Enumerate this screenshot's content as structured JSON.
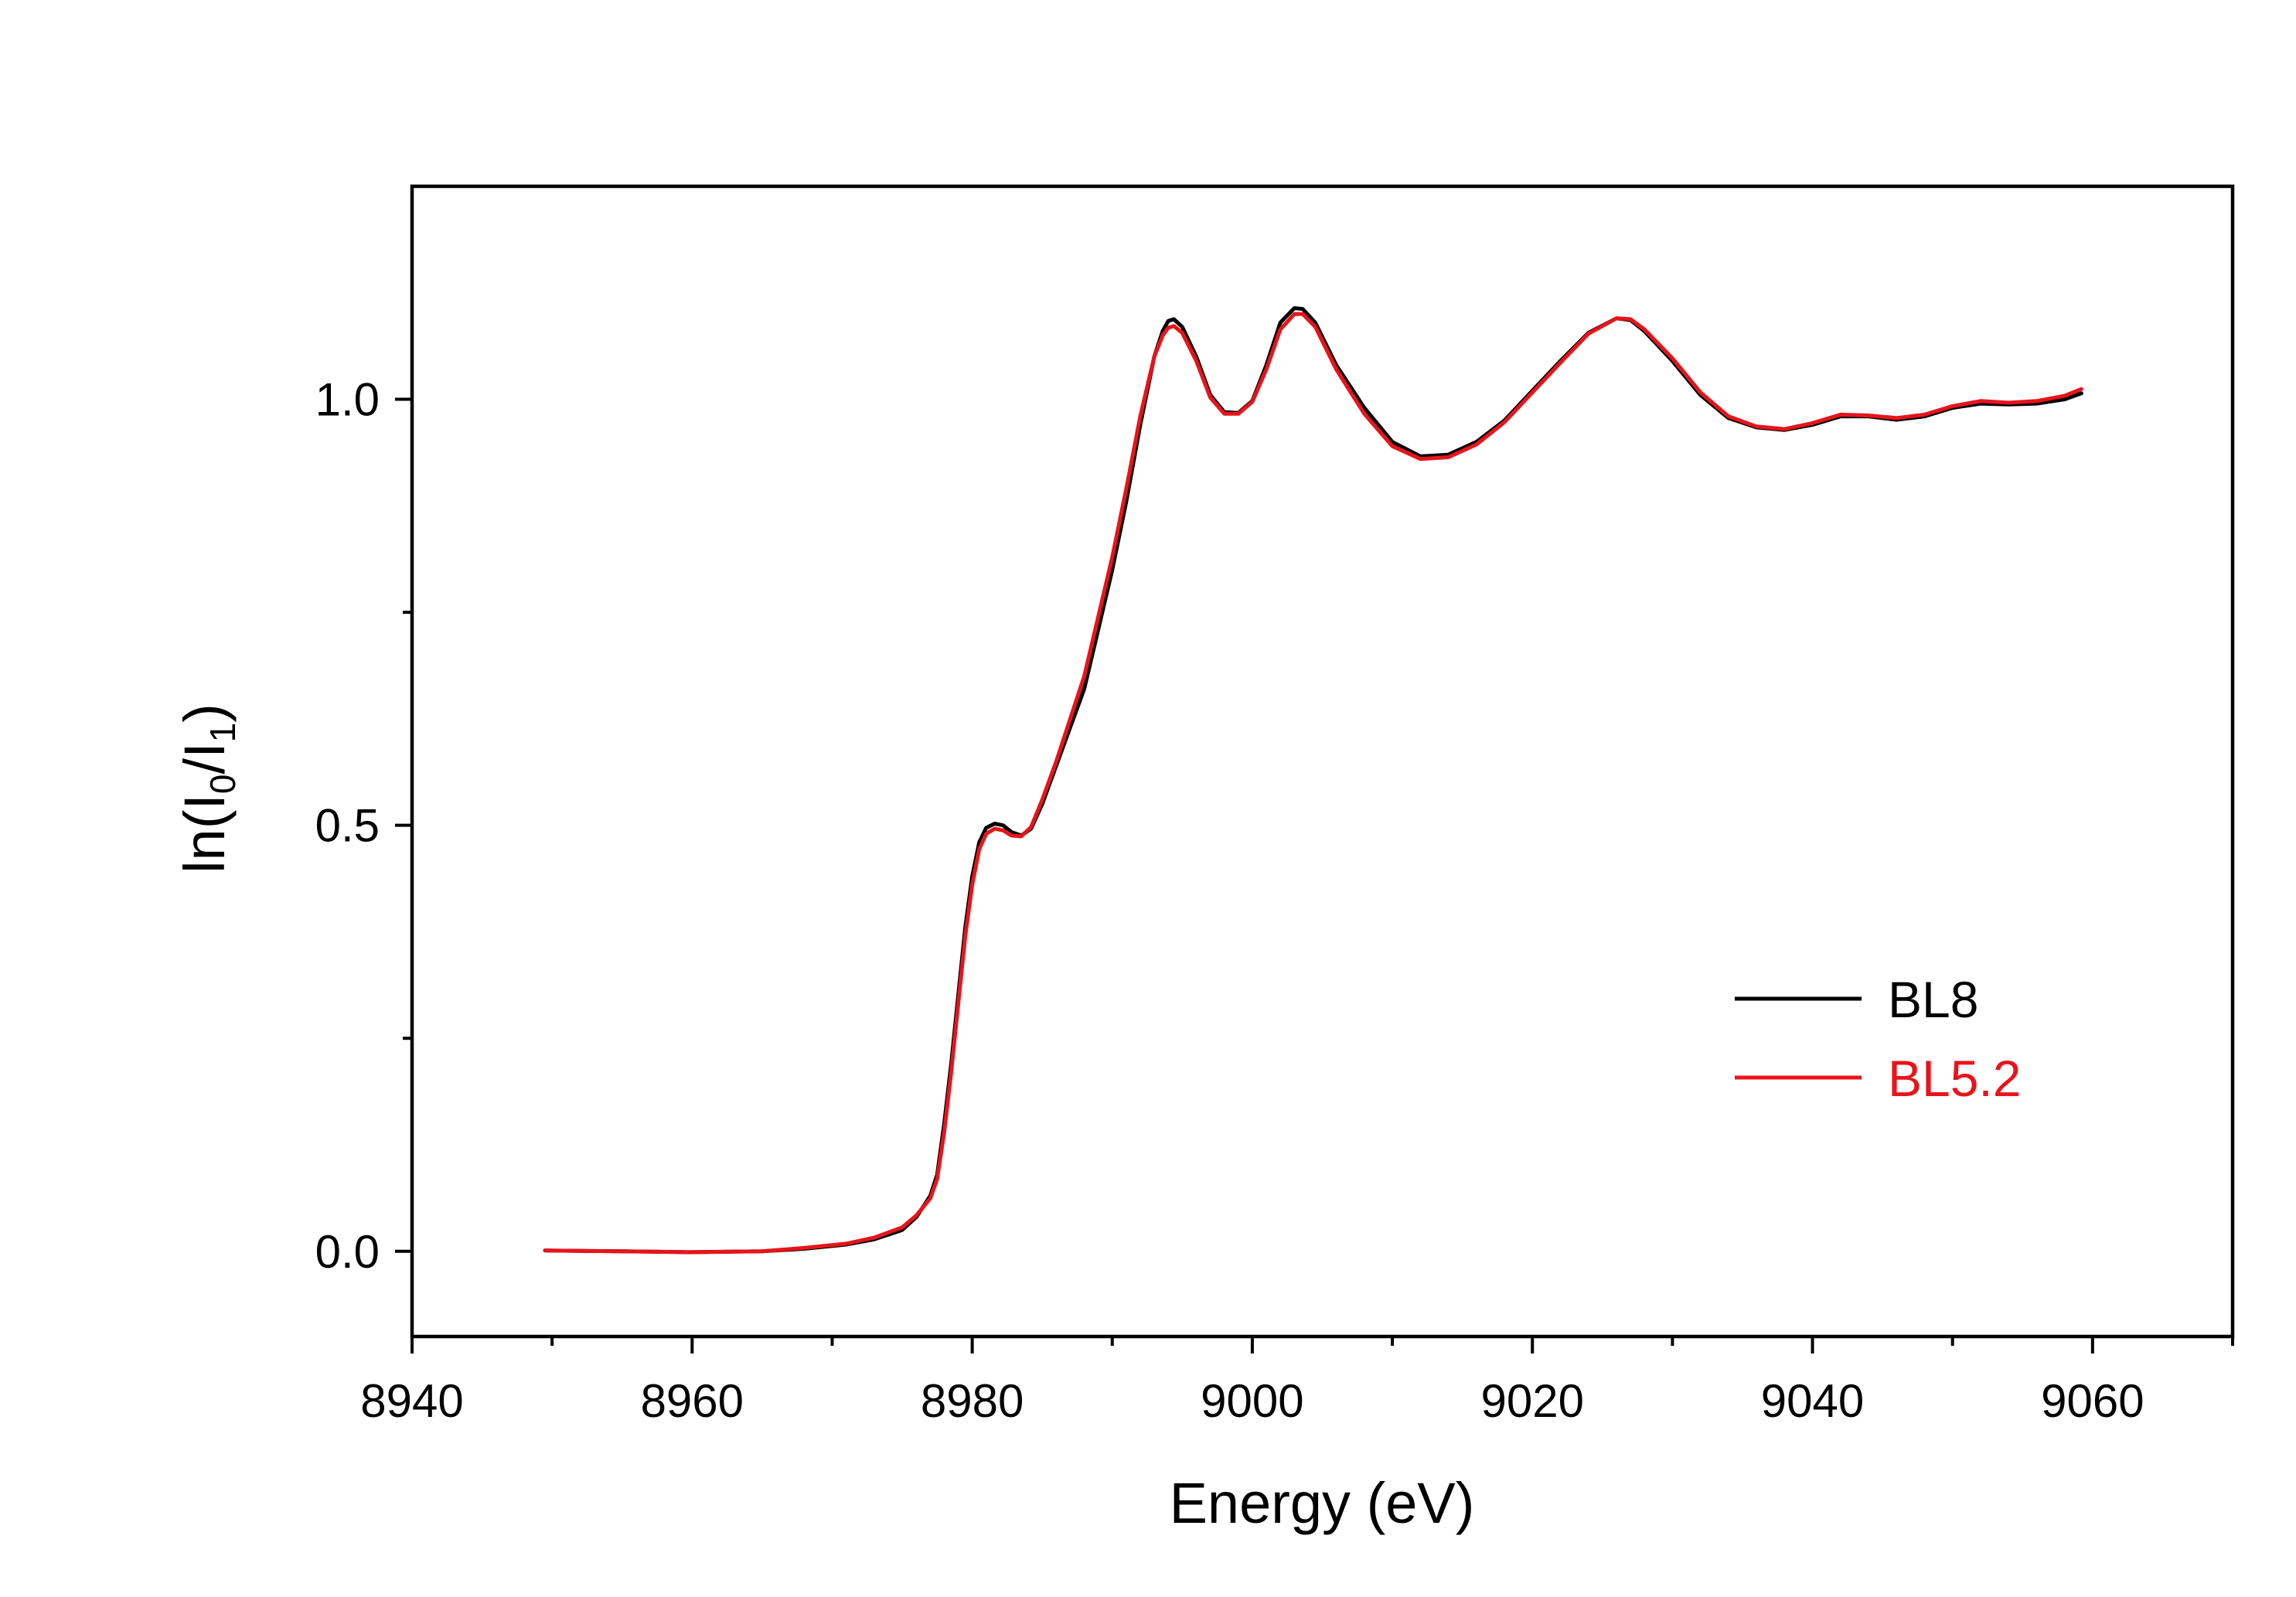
{
  "chart_data": {
    "type": "line",
    "xlabel": "Energy (eV)",
    "ylabel": {
      "prefix": "ln(I",
      "sub0": "0",
      "mid": "/I",
      "sub1": "1",
      "suffix": ")"
    },
    "xlim": [
      8940,
      9070
    ],
    "ylim": [
      -0.1,
      1.25
    ],
    "x_ticks": [
      8940,
      8960,
      8980,
      9000,
      9020,
      9040,
      9060
    ],
    "x_tick_labels": [
      "8940",
      "8960",
      "8980",
      "9000",
      "9020",
      "9040",
      "9060"
    ],
    "x_minor_ticks": [
      8950,
      8970,
      8990,
      9010,
      9030,
      9050,
      9070
    ],
    "y_ticks": [
      0.0,
      0.5,
      1.0
    ],
    "y_tick_labels": [
      "0.0",
      "0.5",
      "1.0"
    ],
    "y_minor_ticks": [
      0.25,
      0.75
    ],
    "grid": false,
    "legend_position": "right",
    "series": [
      {
        "name": "BL8",
        "color": "#000000",
        "points": [
          [
            8949.5,
            0.001
          ],
          [
            8955,
            0.0
          ],
          [
            8960,
            -0.001
          ],
          [
            8965,
            0.0
          ],
          [
            8968,
            0.003
          ],
          [
            8971,
            0.008
          ],
          [
            8973,
            0.014
          ],
          [
            8975,
            0.025
          ],
          [
            8976,
            0.04
          ],
          [
            8977,
            0.065
          ],
          [
            8977.5,
            0.09
          ],
          [
            8978,
            0.15
          ],
          [
            8978.5,
            0.22
          ],
          [
            8979,
            0.3
          ],
          [
            8979.5,
            0.38
          ],
          [
            8980,
            0.44
          ],
          [
            8980.5,
            0.48
          ],
          [
            8981,
            0.497
          ],
          [
            8981.6,
            0.502
          ],
          [
            8982.2,
            0.5
          ],
          [
            8982.8,
            0.492
          ],
          [
            8983.5,
            0.488
          ],
          [
            8984.2,
            0.496
          ],
          [
            8985,
            0.525
          ],
          [
            8986,
            0.57
          ],
          [
            8987,
            0.615
          ],
          [
            8988,
            0.66
          ],
          [
            8989,
            0.73
          ],
          [
            8990,
            0.8
          ],
          [
            8991,
            0.88
          ],
          [
            8992,
            0.97
          ],
          [
            8993,
            1.05
          ],
          [
            8993.6,
            1.08
          ],
          [
            8994,
            1.092
          ],
          [
            8994.4,
            1.094
          ],
          [
            8995,
            1.085
          ],
          [
            8996,
            1.05
          ],
          [
            8997,
            1.005
          ],
          [
            8998,
            0.985
          ],
          [
            8999,
            0.984
          ],
          [
            9000,
            0.998
          ],
          [
            9001,
            1.04
          ],
          [
            9002,
            1.09
          ],
          [
            9003,
            1.107
          ],
          [
            9003.6,
            1.106
          ],
          [
            9004.5,
            1.09
          ],
          [
            9006,
            1.04
          ],
          [
            9008,
            0.99
          ],
          [
            9010,
            0.95
          ],
          [
            9012,
            0.933
          ],
          [
            9014,
            0.935
          ],
          [
            9016,
            0.95
          ],
          [
            9018,
            0.975
          ],
          [
            9020,
            1.01
          ],
          [
            9022,
            1.045
          ],
          [
            9024,
            1.078
          ],
          [
            9026,
            1.095
          ],
          [
            9027,
            1.093
          ],
          [
            9028,
            1.08
          ],
          [
            9030,
            1.045
          ],
          [
            9032,
            1.005
          ],
          [
            9034,
            0.978
          ],
          [
            9036,
            0.967
          ],
          [
            9038,
            0.964
          ],
          [
            9040,
            0.97
          ],
          [
            9042,
            0.98
          ],
          [
            9044,
            0.98
          ],
          [
            9046,
            0.976
          ],
          [
            9048,
            0.98
          ],
          [
            9050,
            0.99
          ],
          [
            9052,
            0.995
          ],
          [
            9054,
            0.994
          ],
          [
            9056,
            0.995
          ],
          [
            9058,
            1.0
          ],
          [
            9059.2,
            1.007
          ]
        ]
      },
      {
        "name": "BL5.2",
        "color": "#e8141b",
        "points": [
          [
            8949.5,
            0.001
          ],
          [
            8955,
            0.0
          ],
          [
            8960,
            -0.001
          ],
          [
            8965,
            0.0
          ],
          [
            8968,
            0.004
          ],
          [
            8971,
            0.009
          ],
          [
            8973,
            0.016
          ],
          [
            8975,
            0.028
          ],
          [
            8976,
            0.042
          ],
          [
            8977,
            0.062
          ],
          [
            8977.5,
            0.085
          ],
          [
            8978,
            0.14
          ],
          [
            8978.5,
            0.21
          ],
          [
            8979,
            0.29
          ],
          [
            8979.5,
            0.37
          ],
          [
            8980,
            0.43
          ],
          [
            8980.5,
            0.472
          ],
          [
            8981,
            0.49
          ],
          [
            8981.6,
            0.496
          ],
          [
            8982.2,
            0.494
          ],
          [
            8982.8,
            0.488
          ],
          [
            8983.5,
            0.487
          ],
          [
            8984.2,
            0.498
          ],
          [
            8985,
            0.53
          ],
          [
            8986,
            0.575
          ],
          [
            8987,
            0.625
          ],
          [
            8988,
            0.675
          ],
          [
            8989,
            0.745
          ],
          [
            8990,
            0.815
          ],
          [
            8991,
            0.895
          ],
          [
            8992,
            0.98
          ],
          [
            8993,
            1.05
          ],
          [
            8993.6,
            1.075
          ],
          [
            8994,
            1.084
          ],
          [
            8994.4,
            1.086
          ],
          [
            8995,
            1.078
          ],
          [
            8996,
            1.045
          ],
          [
            8997,
            1.002
          ],
          [
            8998,
            0.983
          ],
          [
            8999,
            0.983
          ],
          [
            9000,
            0.997
          ],
          [
            9001,
            1.035
          ],
          [
            9002,
            1.082
          ],
          [
            9003,
            1.1
          ],
          [
            9003.6,
            1.1
          ],
          [
            9004.5,
            1.085
          ],
          [
            9006,
            1.035
          ],
          [
            9008,
            0.983
          ],
          [
            9010,
            0.945
          ],
          [
            9012,
            0.93
          ],
          [
            9014,
            0.932
          ],
          [
            9016,
            0.947
          ],
          [
            9018,
            0.973
          ],
          [
            9020,
            1.008
          ],
          [
            9022,
            1.043
          ],
          [
            9024,
            1.077
          ],
          [
            9026,
            1.095
          ],
          [
            9027,
            1.094
          ],
          [
            9028,
            1.082
          ],
          [
            9030,
            1.048
          ],
          [
            9032,
            1.008
          ],
          [
            9034,
            0.98
          ],
          [
            9036,
            0.968
          ],
          [
            9038,
            0.965
          ],
          [
            9040,
            0.972
          ],
          [
            9042,
            0.982
          ],
          [
            9044,
            0.981
          ],
          [
            9046,
            0.978
          ],
          [
            9048,
            0.982
          ],
          [
            9050,
            0.992
          ],
          [
            9052,
            0.998
          ],
          [
            9054,
            0.996
          ],
          [
            9056,
            0.998
          ],
          [
            9058,
            1.004
          ],
          [
            9059.2,
            1.012
          ]
        ]
      }
    ]
  }
}
